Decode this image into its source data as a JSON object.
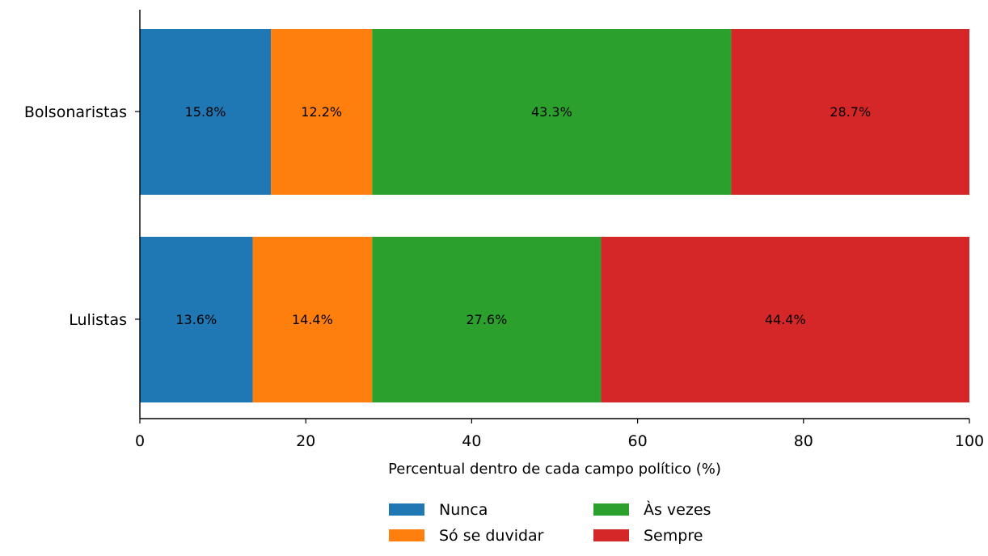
{
  "chart_data": {
    "type": "bar",
    "orientation": "horizontal",
    "stacked": true,
    "title": "",
    "xlabel": "Percentual dentro de cada campo político (%)",
    "ylabel": "",
    "xlim": [
      0,
      100
    ],
    "x_ticks": [
      0,
      20,
      40,
      60,
      80,
      100
    ],
    "x_tick_labels": [
      "0",
      "20",
      "40",
      "60",
      "80",
      "100"
    ],
    "categories": [
      "Bolsonaristas",
      "Lulistas"
    ],
    "series": [
      {
        "name": "Nunca",
        "color": "#1f77b4",
        "values": [
          15.8,
          13.6
        ],
        "labels": [
          "15.8%",
          "13.6%"
        ]
      },
      {
        "name": "Só se duvidar",
        "color": "#ff7f0e",
        "values": [
          12.2,
          14.4
        ],
        "labels": [
          "12.2%",
          "14.4%"
        ]
      },
      {
        "name": "Às vezes",
        "color": "#2ca02c",
        "values": [
          43.3,
          27.6
        ],
        "labels": [
          "43.3%",
          "27.6%"
        ]
      },
      {
        "name": "Sempre",
        "color": "#d62728",
        "values": [
          28.7,
          44.4
        ],
        "labels": [
          "28.7%",
          "44.4%"
        ]
      }
    ],
    "grid": false,
    "legend_position": "bottom-center"
  }
}
